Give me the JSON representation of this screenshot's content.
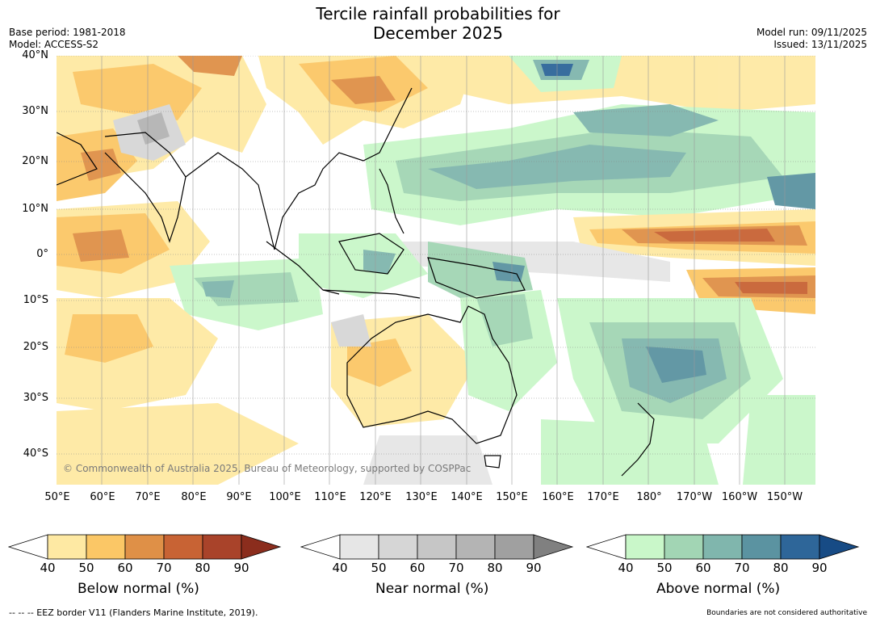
{
  "title_line1": "Tercile rainfall probabilities for",
  "title_line2": "December 2025",
  "base_period": "Base period: 1981-2018",
  "model": "Model: ACCESS-S2",
  "model_run": "Model run: 09/11/2025",
  "issued": "Issued: 13/11/2025",
  "copyright": "© Commonwealth of Australia 2025, Bureau of Meteorology, supported by COSPPac",
  "lat_labels": [
    "40°N",
    "30°N",
    "20°N",
    "10°N",
    "0°",
    "10°S",
    "20°S",
    "30°S",
    "40°S"
  ],
  "lon_labels": [
    "50°E",
    "60°E",
    "70°E",
    "80°E",
    "90°E",
    "100°E",
    "110°E",
    "120°E",
    "130°E",
    "140°E",
    "150°E",
    "160°E",
    "170°E",
    "180°",
    "170°W",
    "160°W",
    "150°W"
  ],
  "colorbars": [
    {
      "name": "below",
      "label": "Below normal (%)",
      "ticks": [
        "40",
        "50",
        "60",
        "70",
        "80",
        "90"
      ],
      "colors": [
        "#ffffff",
        "#fee9a3",
        "#fbc766",
        "#df9047",
        "#c86334",
        "#a9432a",
        "#8b2d1d"
      ]
    },
    {
      "name": "near",
      "label": "Near normal (%)",
      "ticks": [
        "40",
        "50",
        "60",
        "70",
        "80",
        "90"
      ],
      "colors": [
        "#ffffff",
        "#e6e6e6",
        "#d6d6d6",
        "#c6c6c6",
        "#b4b4b4",
        "#a0a0a0",
        "#808080"
      ]
    },
    {
      "name": "above",
      "label": "Above normal (%)",
      "ticks": [
        "40",
        "50",
        "60",
        "70",
        "80",
        "90"
      ],
      "colors": [
        "#ffffff",
        "#c9f7c9",
        "#a2d5b4",
        "#80b6ad",
        "#5b93a1",
        "#2e6699",
        "#174b85"
      ]
    }
  ],
  "eez_note": "--  --  -- EEZ border V11 (Flanders Marine Institute, 2019).",
  "disclaimer": "Boundaries are not considered authoritative"
}
